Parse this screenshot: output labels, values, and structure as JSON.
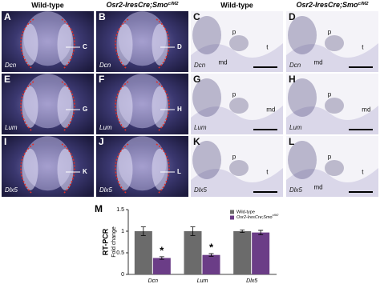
{
  "figure": {
    "column_headers": [
      {
        "text": "Wild-type"
      },
      {
        "text": "Osr2-IresCre;Smo",
        "sup": "c/M2"
      },
      {
        "text": "Wild-type"
      },
      {
        "text": "Osr2-IresCre;Smo",
        "sup": "c/M2"
      }
    ],
    "panels": [
      {
        "letter": "A",
        "gene": "Dcn",
        "section_label": "C"
      },
      {
        "letter": "B",
        "gene": "Dcn",
        "section_label": "D"
      },
      {
        "letter": "C",
        "gene": "Dcn",
        "tissue_labels": [
          "p",
          "t",
          "md"
        ]
      },
      {
        "letter": "D",
        "gene": "Dcn",
        "tissue_labels": [
          "p",
          "t",
          "md"
        ]
      },
      {
        "letter": "E",
        "gene": "Lum",
        "section_label": "G"
      },
      {
        "letter": "F",
        "gene": "Lum",
        "section_label": "H"
      },
      {
        "letter": "G",
        "gene": "Lum",
        "tissue_labels": [
          "p",
          "md"
        ]
      },
      {
        "letter": "H",
        "gene": "Lum",
        "tissue_labels": [
          "p",
          "md"
        ]
      },
      {
        "letter": "I",
        "gene": "Dlx5",
        "section_label": "K"
      },
      {
        "letter": "J",
        "gene": "Dlx5",
        "section_label": "L"
      },
      {
        "letter": "K",
        "gene": "Dlx5",
        "tissue_labels": [
          "p",
          "t"
        ]
      },
      {
        "letter": "L",
        "gene": "Dlx5",
        "tissue_labels": [
          "p",
          "t",
          "md"
        ]
      }
    ]
  },
  "chart_data": {
    "type": "bar",
    "panel_letter": "M",
    "ylabel": "RT-PCR",
    "ylabel2": "Fold change",
    "categories": [
      "Dcn",
      "Lum",
      "Dlx5"
    ],
    "series": [
      {
        "name": "Wild-type",
        "color": "#6b6b6b",
        "values": [
          1,
          1,
          1
        ],
        "errors": [
          0.1,
          0.1,
          0.03
        ]
      },
      {
        "name": "Osr2-IresCre;Smo",
        "name_sup": "c/M2",
        "color": "#6b3d87",
        "values": [
          0.38,
          0.45,
          0.97
        ],
        "errors": [
          0.03,
          0.03,
          0.05
        ],
        "markers": [
          "*",
          "*",
          null
        ]
      }
    ],
    "ylim": [
      0,
      1.5
    ],
    "yticks": [
      0,
      0.5,
      1,
      1.5
    ],
    "grid": false,
    "legend": "top-right"
  }
}
